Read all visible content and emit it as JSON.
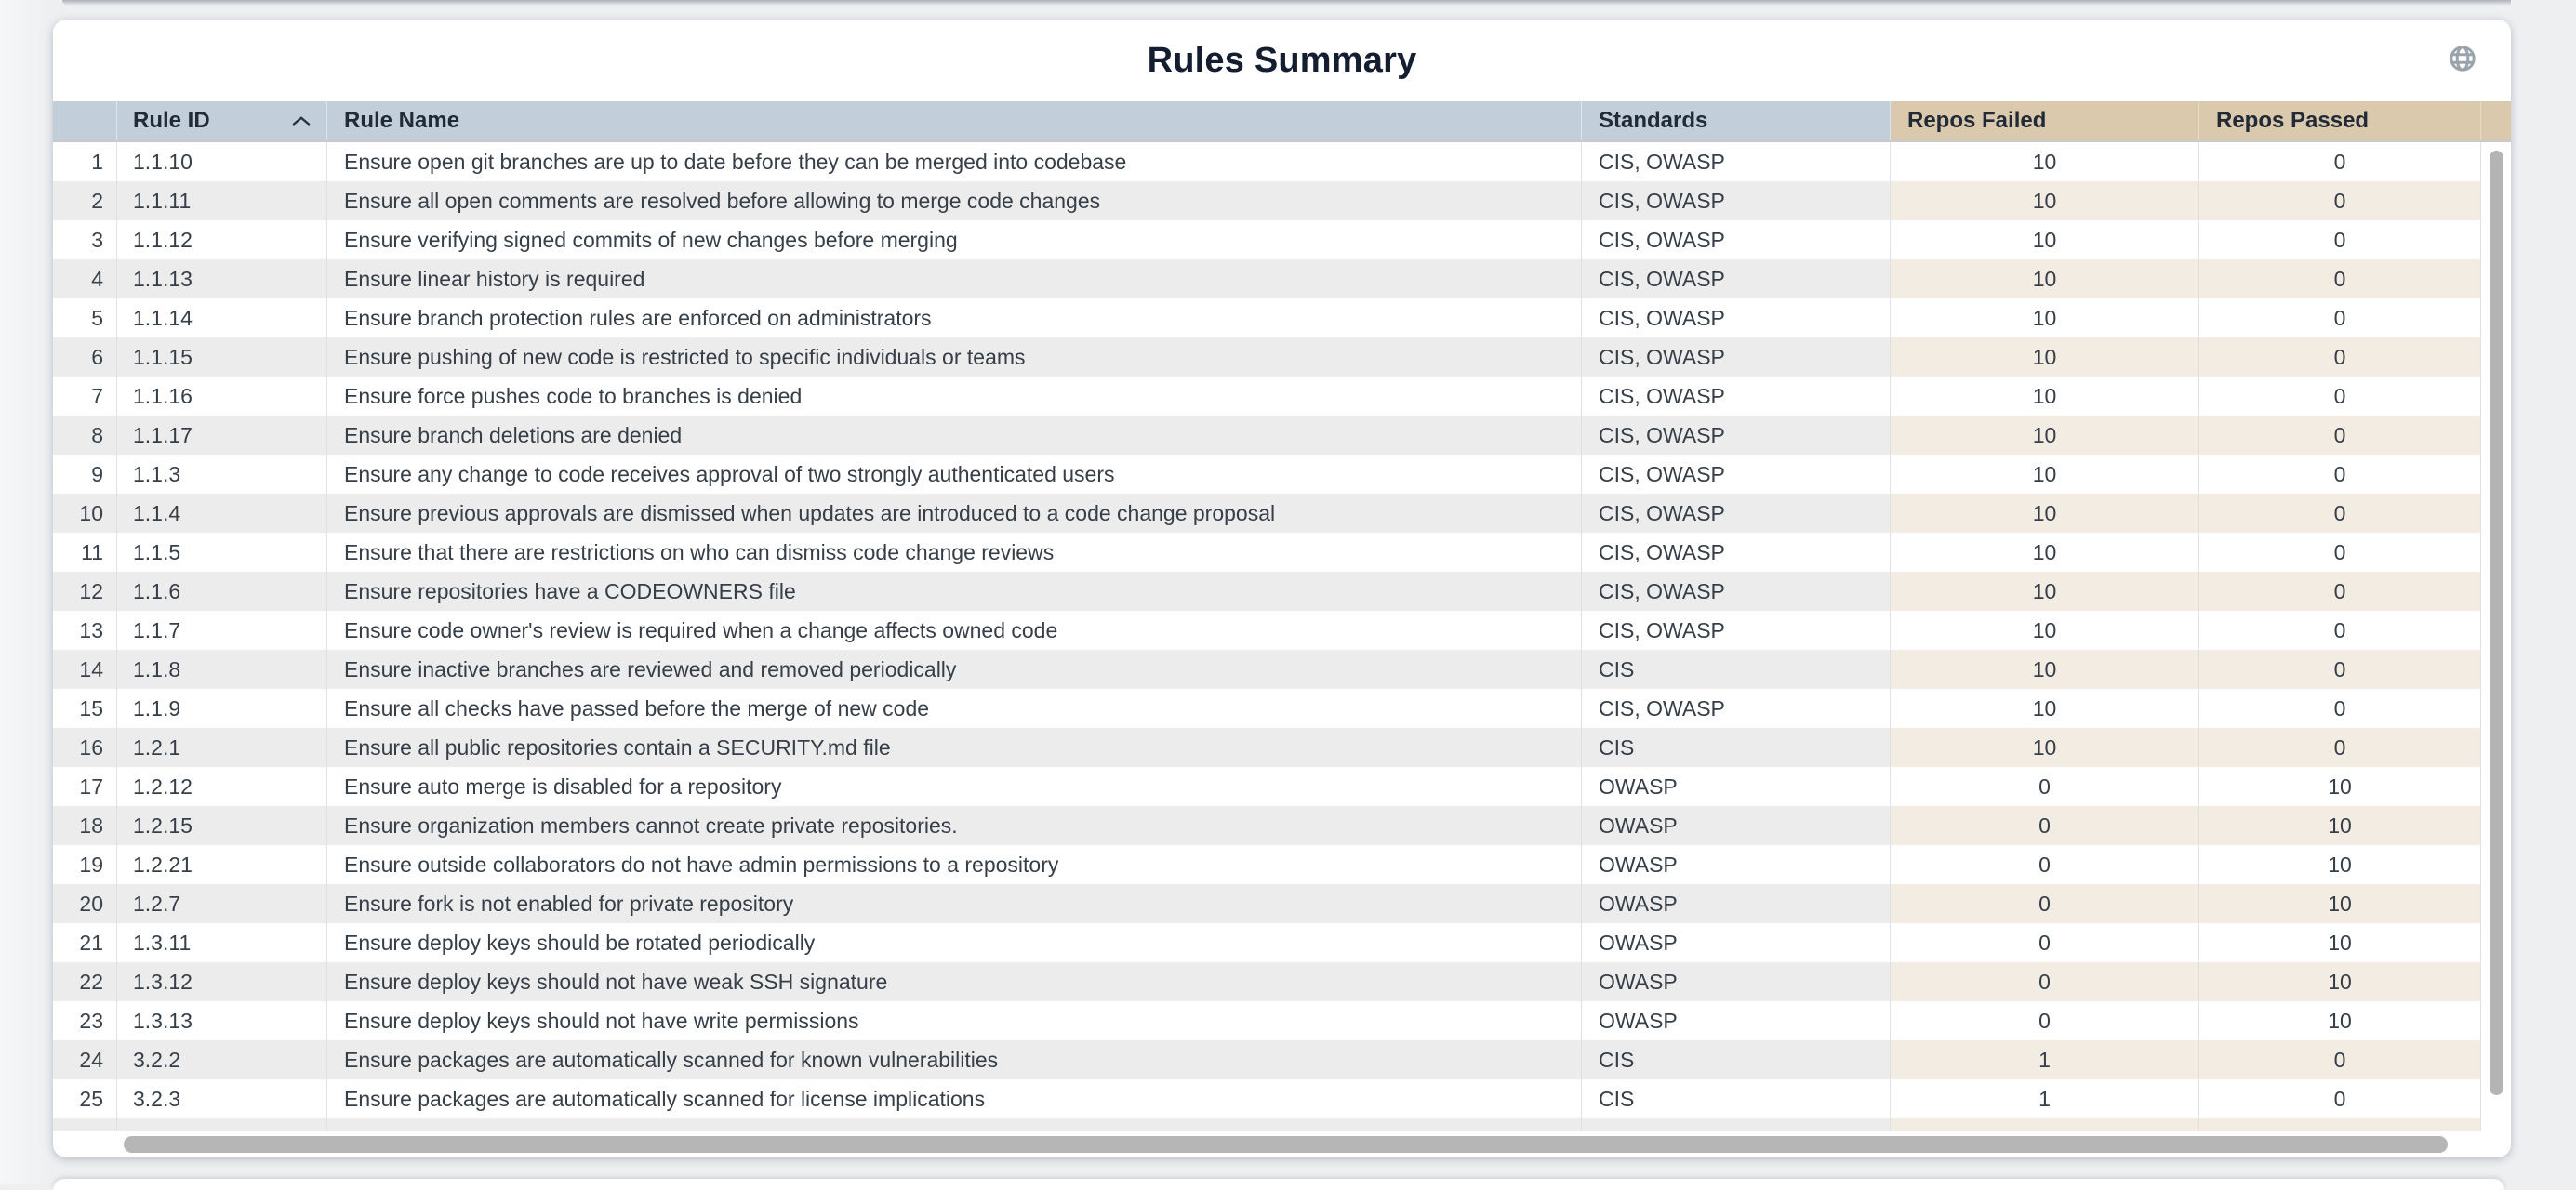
{
  "card": {
    "title": "Rules Summary"
  },
  "icons": {
    "title_bar": "globe-icon",
    "rule_id_sort": "chevron-up-icon"
  },
  "sort": {
    "column": "Rule ID",
    "direction": "ascending"
  },
  "table": {
    "headers": {
      "index": "",
      "rule_id": "Rule ID",
      "rule_name": "Rule Name",
      "standards": "Standards",
      "repos_failed": "Repos Failed",
      "repos_passed": "Repos Passed"
    },
    "rows": [
      {
        "n": "1",
        "id": "1.1.10",
        "name": "Ensure open git branches are up to date before they can be merged into codebase",
        "standards": "CIS, OWASP",
        "failed": "10",
        "passed": "0"
      },
      {
        "n": "2",
        "id": "1.1.11",
        "name": "Ensure all open comments are resolved before allowing to merge code changes",
        "standards": "CIS, OWASP",
        "failed": "10",
        "passed": "0"
      },
      {
        "n": "3",
        "id": "1.1.12",
        "name": "Ensure verifying signed commits of new changes before merging",
        "standards": "CIS, OWASP",
        "failed": "10",
        "passed": "0"
      },
      {
        "n": "4",
        "id": "1.1.13",
        "name": "Ensure linear history is required",
        "standards": "CIS, OWASP",
        "failed": "10",
        "passed": "0"
      },
      {
        "n": "5",
        "id": "1.1.14",
        "name": "Ensure branch protection rules are enforced on administrators",
        "standards": "CIS, OWASP",
        "failed": "10",
        "passed": "0"
      },
      {
        "n": "6",
        "id": "1.1.15",
        "name": "Ensure pushing of new code is restricted to specific individuals or teams",
        "standards": "CIS, OWASP",
        "failed": "10",
        "passed": "0"
      },
      {
        "n": "7",
        "id": "1.1.16",
        "name": "Ensure force pushes code to branches is denied",
        "standards": "CIS, OWASP",
        "failed": "10",
        "passed": "0"
      },
      {
        "n": "8",
        "id": "1.1.17",
        "name": "Ensure branch deletions are denied",
        "standards": "CIS, OWASP",
        "failed": "10",
        "passed": "0"
      },
      {
        "n": "9",
        "id": "1.1.3",
        "name": "Ensure any change to code receives approval of two strongly authenticated users",
        "standards": "CIS, OWASP",
        "failed": "10",
        "passed": "0"
      },
      {
        "n": "10",
        "id": "1.1.4",
        "name": "Ensure previous approvals are dismissed when updates are introduced to a code change proposal",
        "standards": "CIS, OWASP",
        "failed": "10",
        "passed": "0"
      },
      {
        "n": "11",
        "id": "1.1.5",
        "name": "Ensure that there are restrictions on who can dismiss code change reviews",
        "standards": "CIS, OWASP",
        "failed": "10",
        "passed": "0"
      },
      {
        "n": "12",
        "id": "1.1.6",
        "name": "Ensure repositories have a CODEOWNERS file",
        "standards": "CIS, OWASP",
        "failed": "10",
        "passed": "0"
      },
      {
        "n": "13",
        "id": "1.1.7",
        "name": "Ensure code owner's review is required when a change affects owned code",
        "standards": "CIS, OWASP",
        "failed": "10",
        "passed": "0"
      },
      {
        "n": "14",
        "id": "1.1.8",
        "name": "Ensure inactive branches are reviewed and removed periodically",
        "standards": "CIS",
        "failed": "10",
        "passed": "0"
      },
      {
        "n": "15",
        "id": "1.1.9",
        "name": "Ensure all checks have passed before the merge of new code",
        "standards": "CIS, OWASP",
        "failed": "10",
        "passed": "0"
      },
      {
        "n": "16",
        "id": "1.2.1",
        "name": "Ensure all public repositories contain a SECURITY.md file",
        "standards": "CIS",
        "failed": "10",
        "passed": "0"
      },
      {
        "n": "17",
        "id": "1.2.12",
        "name": "Ensure auto merge is disabled for a repository",
        "standards": "OWASP",
        "failed": "0",
        "passed": "10"
      },
      {
        "n": "18",
        "id": "1.2.15",
        "name": "Ensure organization members cannot create private repositories.",
        "standards": "OWASP",
        "failed": "0",
        "passed": "10"
      },
      {
        "n": "19",
        "id": "1.2.21",
        "name": "Ensure outside collaborators do not have admin permissions to a repository",
        "standards": "OWASP",
        "failed": "0",
        "passed": "10"
      },
      {
        "n": "20",
        "id": "1.2.7",
        "name": "Ensure fork is not enabled for private repository",
        "standards": "OWASP",
        "failed": "0",
        "passed": "10"
      },
      {
        "n": "21",
        "id": "1.3.11",
        "name": "Ensure deploy keys should be rotated periodically",
        "standards": "OWASP",
        "failed": "0",
        "passed": "10"
      },
      {
        "n": "22",
        "id": "1.3.12",
        "name": "Ensure deploy keys should not have weak SSH signature",
        "standards": "OWASP",
        "failed": "0",
        "passed": "10"
      },
      {
        "n": "23",
        "id": "1.3.13",
        "name": "Ensure deploy keys should not have write permissions",
        "standards": "OWASP",
        "failed": "0",
        "passed": "10"
      },
      {
        "n": "24",
        "id": "3.2.2",
        "name": "Ensure packages are automatically scanned for known vulnerabilities",
        "standards": "CIS",
        "failed": "1",
        "passed": "0"
      },
      {
        "n": "25",
        "id": "3.2.3",
        "name": "Ensure packages are automatically scanned for license implications",
        "standards": "CIS",
        "failed": "1",
        "passed": "0"
      }
    ]
  },
  "colors": {
    "page_bg": "#edeff1",
    "card_bg": "#ffffff",
    "header_blue": "#c3cedb",
    "header_tan": "#dbc9ad",
    "stripe_gray": "#ececec",
    "stripe_tan": "#f2ece3",
    "title_text": "#141e30",
    "body_text": "#363e48",
    "scrollbar": "#b5b5b5",
    "icon_gray": "#9aa2ac"
  }
}
